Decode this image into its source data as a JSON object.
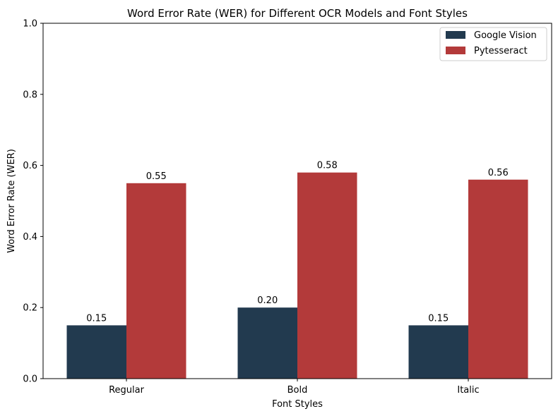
{
  "chart_data": {
    "type": "bar",
    "title": "Word Error Rate (WER) for Different OCR Models and Font Styles",
    "xlabel": "Font Styles",
    "ylabel": "Word Error Rate (WER)",
    "categories": [
      "Regular",
      "Bold",
      "Italic"
    ],
    "series": [
      {
        "name": "Google Vision",
        "values": [
          0.15,
          0.2,
          0.15
        ],
        "labels": [
          "0.15",
          "0.20",
          "0.15"
        ],
        "color": "#223a4f"
      },
      {
        "name": "Pytesseract",
        "values": [
          0.55,
          0.58,
          0.56
        ],
        "labels": [
          "0.55",
          "0.58",
          "0.56"
        ],
        "color": "#b33a3a"
      }
    ],
    "ylim": [
      0,
      1
    ],
    "yticks": [
      "0.0",
      "0.2",
      "0.4",
      "0.6",
      "0.8",
      "1.0"
    ],
    "grid": false,
    "legend_position": "top-right"
  }
}
